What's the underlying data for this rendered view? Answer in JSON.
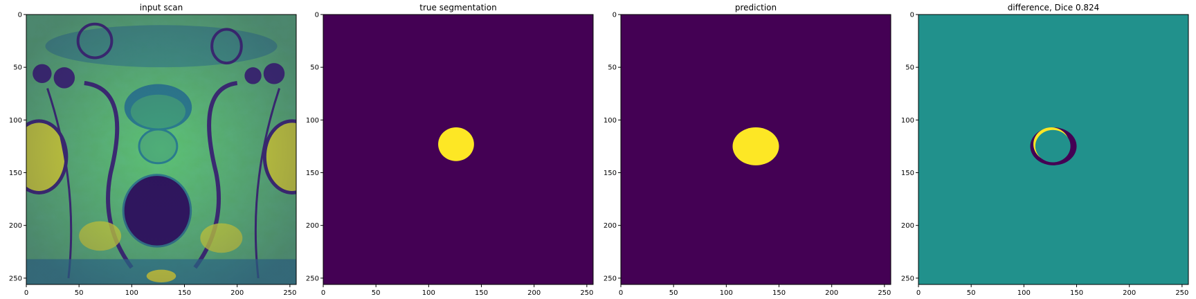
{
  "chart_data": [
    {
      "type": "heatmap",
      "title": "input scan",
      "xlim": [
        0,
        256
      ],
      "ylim": [
        256,
        0
      ],
      "xticks": [
        0,
        50,
        100,
        150,
        200,
        250
      ],
      "yticks": [
        0,
        50,
        100,
        150,
        200,
        250
      ],
      "colormap": "viridis",
      "content": "mri-scan"
    },
    {
      "type": "heatmap",
      "title": "true segmentation",
      "xlim": [
        0,
        256
      ],
      "ylim": [
        256,
        0
      ],
      "xticks": [
        0,
        50,
        100,
        150,
        200,
        250
      ],
      "yticks": [
        0,
        50,
        100,
        150,
        200,
        250
      ],
      "colormap": "viridis",
      "blob": {
        "cx": 126,
        "cy": 123,
        "rx": 17,
        "ry": 16
      }
    },
    {
      "type": "heatmap",
      "title": "prediction",
      "xlim": [
        0,
        256
      ],
      "ylim": [
        256,
        0
      ],
      "xticks": [
        0,
        50,
        100,
        150,
        200,
        250
      ],
      "yticks": [
        0,
        50,
        100,
        150,
        200,
        250
      ],
      "colormap": "viridis",
      "blob": {
        "cx": 128,
        "cy": 125,
        "rx": 22,
        "ry": 18
      }
    },
    {
      "type": "heatmap",
      "title": "difference, Dice 0.824",
      "xlim": [
        0,
        256
      ],
      "ylim": [
        256,
        0
      ],
      "xticks": [
        0,
        50,
        100,
        150,
        200,
        250
      ],
      "yticks": [
        0,
        50,
        100,
        150,
        200,
        250
      ],
      "colormap": "viridis",
      "true_blob": {
        "cx": 126,
        "cy": 123,
        "rx": 17,
        "ry": 16
      },
      "pred_blob": {
        "cx": 128,
        "cy": 125,
        "rx": 22,
        "ry": 18
      }
    }
  ],
  "colors": {
    "background": "#440154",
    "foreground": "#fde725",
    "difference_neutral": "#21918c"
  }
}
